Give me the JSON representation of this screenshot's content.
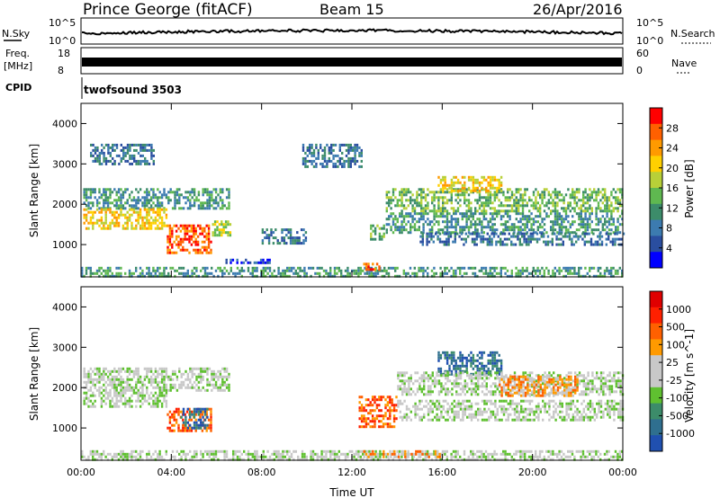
{
  "header": {
    "station": "Prince George (fitACF)",
    "beam": "Beam 15",
    "date": "26/Apr/2016"
  },
  "noise_panel": {
    "left_label": "N.Sky",
    "right_label": "N.Search",
    "left_ticks": [
      "10^5",
      "10^0"
    ],
    "right_ticks": [
      "10^5",
      "10^0"
    ]
  },
  "freq_panel": {
    "left_label_1": "Freq.",
    "left_label_2": "[MHz]",
    "right_label": "Nave",
    "left_ticks": [
      "18",
      "8"
    ],
    "right_ticks": [
      "60",
      "0"
    ]
  },
  "cpid_panel": {
    "label": "CPID",
    "value": "twofsound 3503"
  },
  "colors": {
    "power_scale": [
      "#0000ff",
      "#2a4ea0",
      "#3c7bb0",
      "#3c8c6a",
      "#5fb850",
      "#b8d038",
      "#ffd000",
      "#ff9a00",
      "#ff6000",
      "#ff0000"
    ],
    "velocity_scale": [
      "#2050b0",
      "#2f6f8f",
      "#3c8c6a",
      "#5fc030",
      "#c8c8c8",
      "#c8c8c8",
      "#ff9a00",
      "#ff6000",
      "#ff2000",
      "#e00000"
    ]
  },
  "chart_data": [
    {
      "type": "heatmap",
      "title": "",
      "xlabel": "",
      "ylabel": "Slant Range [km]",
      "colorbar_label": "Power [dB]",
      "colorbar_ticks": [
        "28",
        "24",
        "20",
        "16",
        "12",
        "8",
        "4"
      ],
      "x_ticks": [
        "00:00",
        "04:00",
        "08:00",
        "12:00",
        "16:00",
        "20:00",
        "00:00"
      ],
      "y_ticks": [
        "4000",
        "3000",
        "2000",
        "1000"
      ],
      "xlim": [
        0,
        24
      ],
      "ylim": [
        200,
        4500
      ],
      "regions": [
        {
          "t0": 0.1,
          "t1": 6.6,
          "r0": 1900,
          "r1": 2400,
          "level": 3
        },
        {
          "t0": 0.1,
          "t1": 3.8,
          "r0": 1400,
          "r1": 1900,
          "level": 6
        },
        {
          "t0": 3.8,
          "t1": 5.8,
          "r0": 800,
          "r1": 1500,
          "level": 8
        },
        {
          "t0": 5.8,
          "t1": 6.6,
          "r0": 1200,
          "r1": 1600,
          "level": 5
        },
        {
          "t0": 0.4,
          "t1": 3.2,
          "r0": 3000,
          "r1": 3500,
          "level": 2
        },
        {
          "t0": 9.8,
          "t1": 12.4,
          "r0": 2900,
          "r1": 3500,
          "level": 2
        },
        {
          "t0": 8.0,
          "t1": 10.0,
          "r0": 1000,
          "r1": 1400,
          "level": 2
        },
        {
          "t0": 12.8,
          "t1": 13.4,
          "r0": 1100,
          "r1": 1500,
          "level": 4
        },
        {
          "t0": 13.5,
          "t1": 24.0,
          "r0": 1800,
          "r1": 2400,
          "level": 4
        },
        {
          "t0": 15.8,
          "t1": 18.6,
          "r0": 2300,
          "r1": 2700,
          "level": 6
        },
        {
          "t0": 13.5,
          "t1": 24.0,
          "r0": 1300,
          "r1": 1800,
          "level": 3
        },
        {
          "t0": 15.0,
          "t1": 24.0,
          "r0": 1000,
          "r1": 1300,
          "level": 2
        },
        {
          "t0": 0.0,
          "t1": 24.0,
          "r0": 200,
          "r1": 450,
          "level": 3
        },
        {
          "t0": 12.5,
          "t1": 13.2,
          "r0": 400,
          "r1": 550,
          "level": 8
        },
        {
          "t0": 6.4,
          "t1": 8.5,
          "r0": 550,
          "r1": 650,
          "level": 1
        }
      ]
    },
    {
      "type": "heatmap",
      "title": "",
      "xlabel": "Time UT",
      "ylabel": "Slant Range [km]",
      "colorbar_label": "Velocity [m s^-1]",
      "colorbar_ticks": [
        "1000",
        "500",
        "100",
        "25",
        "-25",
        "-100",
        "-500",
        "-1000"
      ],
      "x_ticks": [
        "00:00",
        "04:00",
        "08:00",
        "12:00",
        "16:00",
        "20:00",
        "00:00"
      ],
      "y_ticks": [
        "4000",
        "3000",
        "2000",
        "1000"
      ],
      "xlim": [
        0,
        24
      ],
      "ylim": [
        200,
        4500
      ],
      "regions": [
        {
          "t0": 0.1,
          "t1": 6.6,
          "r0": 1900,
          "r1": 2500,
          "level": 4
        },
        {
          "t0": 0.1,
          "t1": 3.8,
          "r0": 1500,
          "r1": 1900,
          "level": 4
        },
        {
          "t0": 3.8,
          "t1": 5.8,
          "r0": 900,
          "r1": 1500,
          "level": 7
        },
        {
          "t0": 4.4,
          "t1": 5.6,
          "r0": 1000,
          "r1": 1500,
          "level": 1
        },
        {
          "t0": 12.3,
          "t1": 14.0,
          "r0": 1000,
          "r1": 1800,
          "level": 7
        },
        {
          "t0": 15.8,
          "t1": 18.6,
          "r0": 2300,
          "r1": 2900,
          "level": 1
        },
        {
          "t0": 14.0,
          "t1": 24.0,
          "r0": 1800,
          "r1": 2400,
          "level": 4
        },
        {
          "t0": 18.5,
          "t1": 22.0,
          "r0": 1800,
          "r1": 2300,
          "level": 6
        },
        {
          "t0": 14.0,
          "t1": 24.0,
          "r0": 1200,
          "r1": 1700,
          "level": 4
        },
        {
          "t0": 0.0,
          "t1": 24.0,
          "r0": 200,
          "r1": 450,
          "level": 4
        },
        {
          "t0": 12.5,
          "t1": 16.0,
          "r0": 300,
          "r1": 450,
          "level": 6
        }
      ]
    }
  ]
}
